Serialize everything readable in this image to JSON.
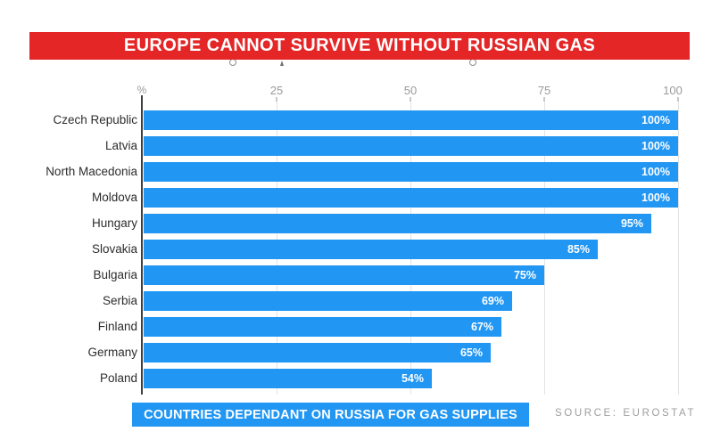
{
  "banner": {
    "text": "EUROPE CANNOT SURVIVE WITHOUT RUSSIAN GAS",
    "bg_color": "#e42627",
    "text_color": "#ffffff"
  },
  "chart_data": {
    "type": "bar",
    "orientation": "horizontal",
    "categories": [
      "Czech Republic",
      "Latvia",
      "North Macedonia",
      "Moldova",
      "Hungary",
      "Slovakia",
      "Bulgaria",
      "Serbia",
      "Finland",
      "Germany",
      "Poland"
    ],
    "values": [
      100,
      100,
      100,
      100,
      95,
      85,
      75,
      69,
      67,
      65,
      54
    ],
    "value_labels": [
      "100%",
      "100%",
      "100%",
      "100%",
      "95%",
      "85%",
      "75%",
      "69%",
      "67%",
      "65%",
      "54%"
    ],
    "bar_color": "#2196f3",
    "x_axis": {
      "position": "top",
      "unit_label": "%",
      "ticks": [
        25,
        50,
        75,
        100
      ],
      "range": [
        0,
        100
      ]
    },
    "grid": true,
    "legend": "none",
    "title": "",
    "caption": "COUNTRIES DEPENDANT ON RUSSIA FOR GAS SUPPLIES",
    "source": "SOURCE: EUROSTAT"
  },
  "colors": {
    "bar_blue": "#2196f3",
    "banner_red": "#e42627",
    "axis_gray": "#9a9a9a",
    "grid_gray": "#e3e3e3",
    "axis_line": "#3f3f3f",
    "source_gray": "#9e9e9e",
    "label_dark": "#2d2d2d"
  }
}
